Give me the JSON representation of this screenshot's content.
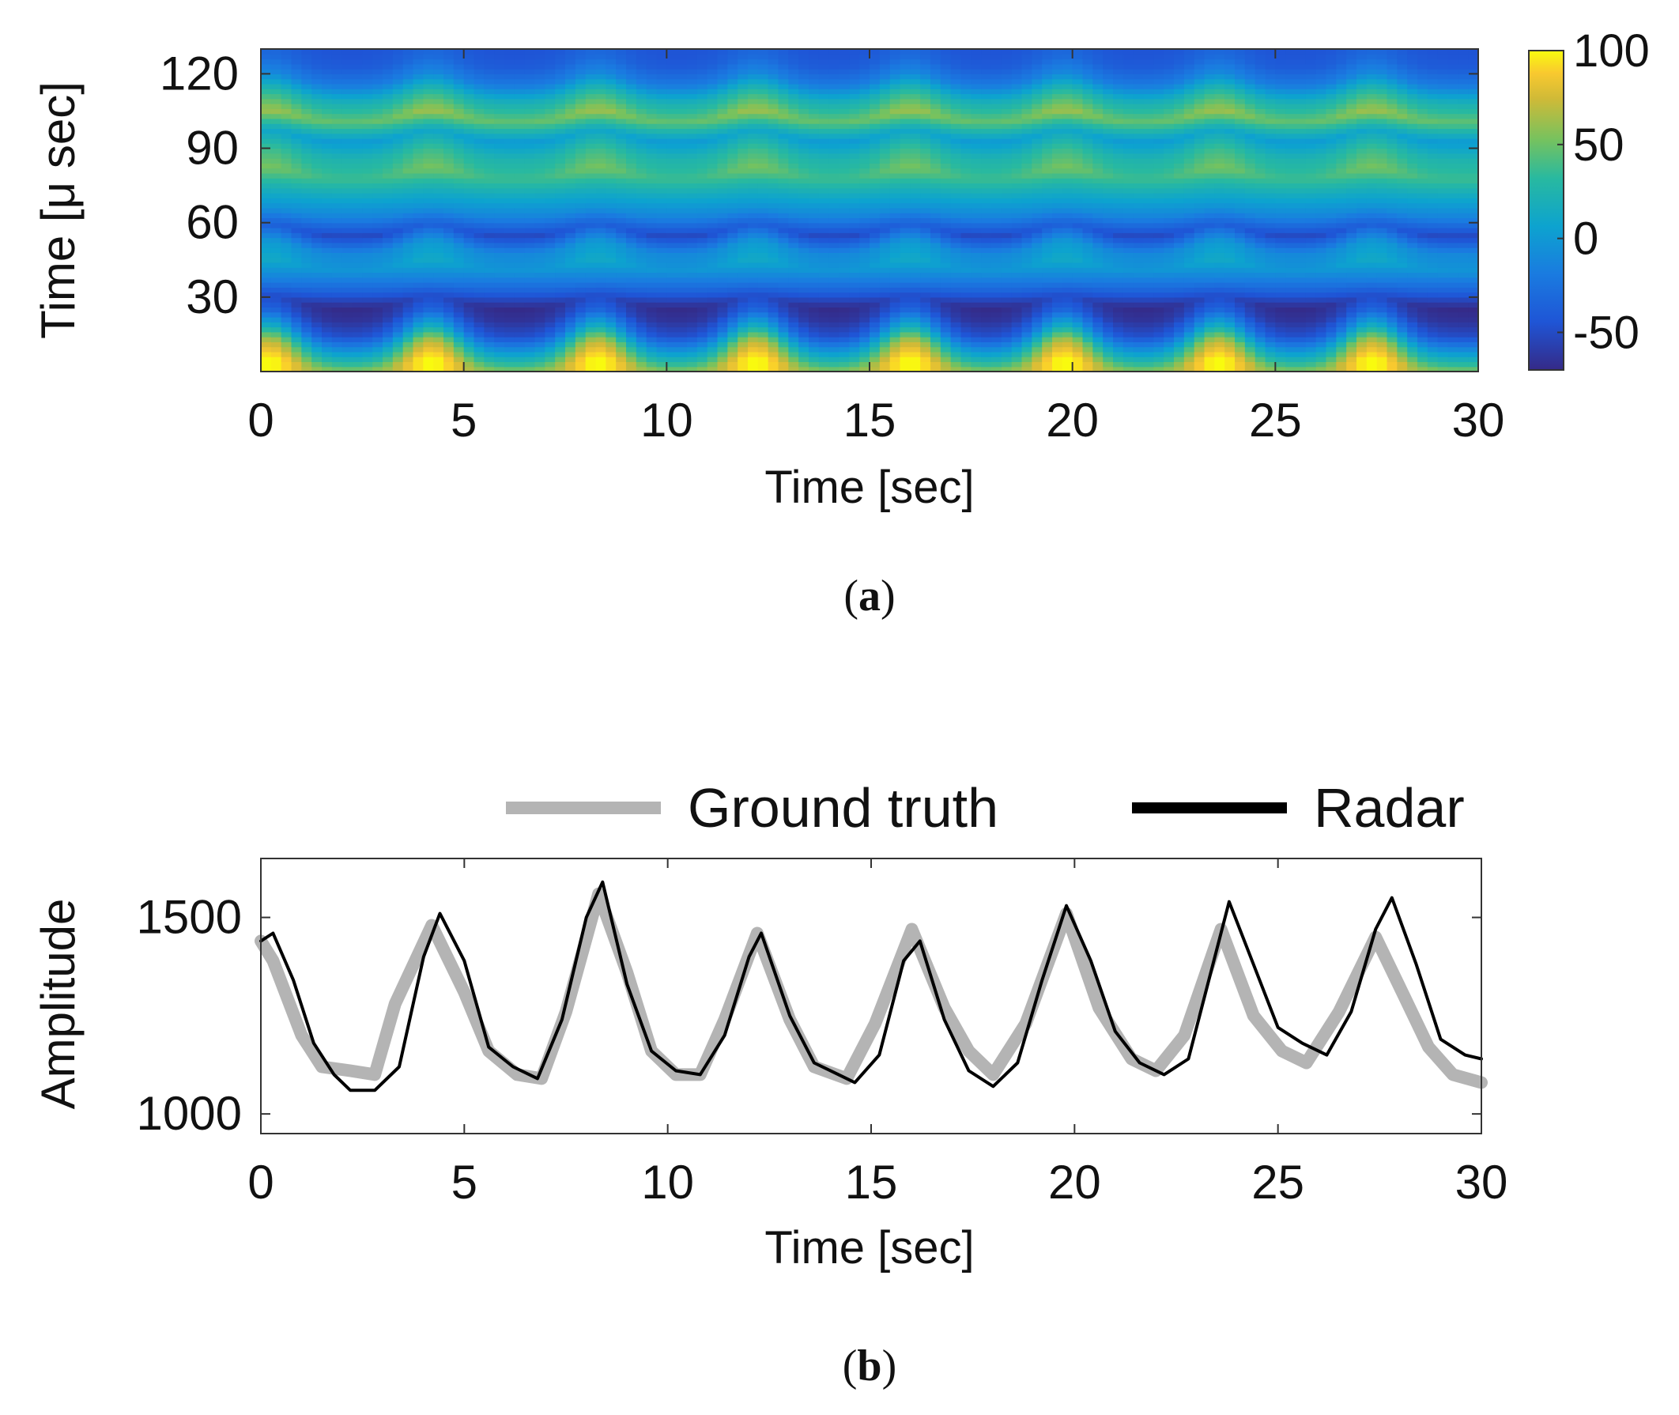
{
  "panels": {
    "a": {
      "caption_open": "(",
      "caption_letter": "a",
      "caption_close": ")"
    },
    "b": {
      "caption_open": "(",
      "caption_letter": "b",
      "caption_close": ")"
    }
  },
  "chart_data": [
    {
      "id": "a",
      "type": "heatmap",
      "title": "",
      "xlabel": "Time [sec]",
      "ylabel": "Time [μ sec]",
      "xlim": [
        0,
        30
      ],
      "ylim": [
        0,
        130
      ],
      "xticks": [
        0,
        5,
        10,
        15,
        20,
        25,
        30
      ],
      "yticks": [
        30,
        60,
        90,
        120
      ],
      "colorbar": {
        "ticks": [
          -50,
          0,
          50,
          100
        ],
        "range": [
          -70,
          100
        ],
        "colormap": "parula"
      },
      "rows": [
        {
          "y": 3,
          "base": 75,
          "osc": 25
        },
        {
          "y": 10,
          "base": 35,
          "osc": 35
        },
        {
          "y": 17,
          "base": -20,
          "osc": 30
        },
        {
          "y": 23,
          "base": -50,
          "osc": 15
        },
        {
          "y": 28,
          "base": -60,
          "osc": 10
        },
        {
          "y": 35,
          "base": -25,
          "osc": 10
        },
        {
          "y": 43,
          "base": 5,
          "osc": 8
        },
        {
          "y": 50,
          "base": -5,
          "osc": 6
        },
        {
          "y": 57,
          "base": -45,
          "osc": 8
        },
        {
          "y": 64,
          "base": -10,
          "osc": 6
        },
        {
          "y": 72,
          "base": 15,
          "osc": 6
        },
        {
          "y": 80,
          "base": 45,
          "osc": 8
        },
        {
          "y": 88,
          "base": 30,
          "osc": 6
        },
        {
          "y": 95,
          "base": 5,
          "osc": 5
        },
        {
          "y": 103,
          "base": 55,
          "osc": 8
        },
        {
          "y": 111,
          "base": 25,
          "osc": 6
        },
        {
          "y": 118,
          "base": -15,
          "osc": 5
        },
        {
          "y": 125,
          "base": -35,
          "osc": 5
        },
        {
          "y": 130,
          "base": -40,
          "osc": 5
        }
      ],
      "peaks_sec": [
        0.2,
        4.2,
        8.3,
        12.2,
        16.0,
        19.8,
        23.6,
        27.4
      ]
    },
    {
      "id": "b",
      "type": "line",
      "title": "",
      "xlabel": "Time [sec]",
      "ylabel": "Amplitude",
      "xlim": [
        0,
        30
      ],
      "ylim": [
        950,
        1650
      ],
      "xticks": [
        0,
        5,
        10,
        15,
        20,
        25,
        30
      ],
      "yticks": [
        1000,
        1500
      ],
      "legend": {
        "placement": "top-outside"
      },
      "series": [
        {
          "name": "Ground truth",
          "color": "#b4b4b4",
          "x": [
            0,
            0.3,
            1,
            1.5,
            2.2,
            2.8,
            3.3,
            4.2,
            5,
            5.6,
            6.3,
            6.9,
            7.5,
            8.3,
            9,
            9.6,
            10.2,
            10.8,
            11.4,
            12.2,
            13,
            13.6,
            14.4,
            15.1,
            16,
            16.8,
            17.4,
            18,
            18.8,
            19.8,
            20.6,
            21.4,
            22,
            22.7,
            23.6,
            24.4,
            25.1,
            25.7,
            26.5,
            27.4,
            28.1,
            28.7,
            29.3,
            30
          ],
          "values": [
            1440,
            1390,
            1200,
            1120,
            1110,
            1100,
            1280,
            1480,
            1310,
            1160,
            1100,
            1090,
            1260,
            1560,
            1360,
            1160,
            1100,
            1100,
            1240,
            1460,
            1240,
            1120,
            1090,
            1230,
            1470,
            1270,
            1160,
            1100,
            1230,
            1510,
            1270,
            1140,
            1110,
            1200,
            1470,
            1250,
            1160,
            1130,
            1260,
            1450,
            1300,
            1170,
            1100,
            1080
          ]
        },
        {
          "name": "Radar",
          "color": "#000000",
          "x": [
            0,
            0.3,
            0.8,
            1.3,
            1.8,
            2.2,
            2.8,
            3.4,
            4.0,
            4.4,
            5.0,
            5.6,
            6.2,
            6.8,
            7.4,
            8.0,
            8.4,
            9.0,
            9.6,
            10.2,
            10.8,
            11.4,
            12.0,
            12.3,
            13.0,
            13.6,
            14.2,
            14.6,
            15.2,
            15.8,
            16.2,
            16.8,
            17.4,
            18.0,
            18.6,
            19.2,
            19.8,
            20.4,
            21.0,
            21.6,
            22.2,
            22.8,
            23.4,
            23.8,
            24.4,
            25.0,
            25.6,
            26.2,
            26.8,
            27.4,
            27.8,
            28.4,
            29.0,
            29.6,
            30.0
          ],
          "values": [
            1440,
            1460,
            1340,
            1180,
            1100,
            1060,
            1060,
            1120,
            1400,
            1510,
            1390,
            1170,
            1120,
            1090,
            1240,
            1500,
            1590,
            1330,
            1160,
            1110,
            1100,
            1200,
            1400,
            1460,
            1250,
            1130,
            1100,
            1080,
            1150,
            1390,
            1440,
            1240,
            1110,
            1070,
            1130,
            1340,
            1530,
            1390,
            1210,
            1130,
            1100,
            1140,
            1380,
            1540,
            1380,
            1220,
            1180,
            1150,
            1260,
            1470,
            1550,
            1380,
            1190,
            1150,
            1140
          ]
        }
      ]
    }
  ]
}
